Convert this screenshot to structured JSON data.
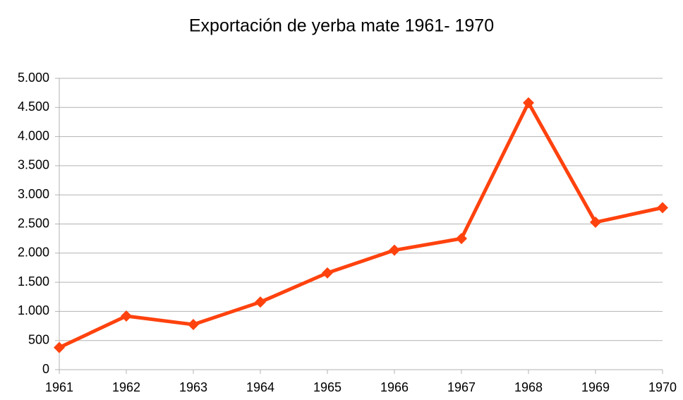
{
  "chart_data": {
    "type": "line",
    "title": "Exportación de yerba mate 1961- 1970",
    "categories": [
      "1961",
      "1962",
      "1963",
      "1964",
      "1965",
      "1966",
      "1967",
      "1968",
      "1969",
      "1970"
    ],
    "series": [
      {
        "name": "Exportación",
        "color": "#ff420e",
        "values": [
          380,
          920,
          775,
          1160,
          1660,
          2050,
          2250,
          4580,
          2530,
          2780
        ]
      }
    ],
    "ylim": [
      0,
      5000
    ],
    "yticks": [
      0,
      500,
      {
        "value": 1000,
        "label": "1.000"
      },
      {
        "value": 1500,
        "label": "1.500"
      },
      {
        "value": 2000,
        "label": "2.000"
      },
      {
        "value": 2500,
        "label": "2.500"
      },
      {
        "value": 3000,
        "label": "3.000"
      },
      {
        "value": 3500,
        "label": "3.500"
      },
      {
        "value": 4000,
        "label": "4.000"
      },
      {
        "value": 4500,
        "label": "4.500"
      },
      {
        "value": 5000,
        "label": "5.000"
      }
    ],
    "grid": true
  }
}
